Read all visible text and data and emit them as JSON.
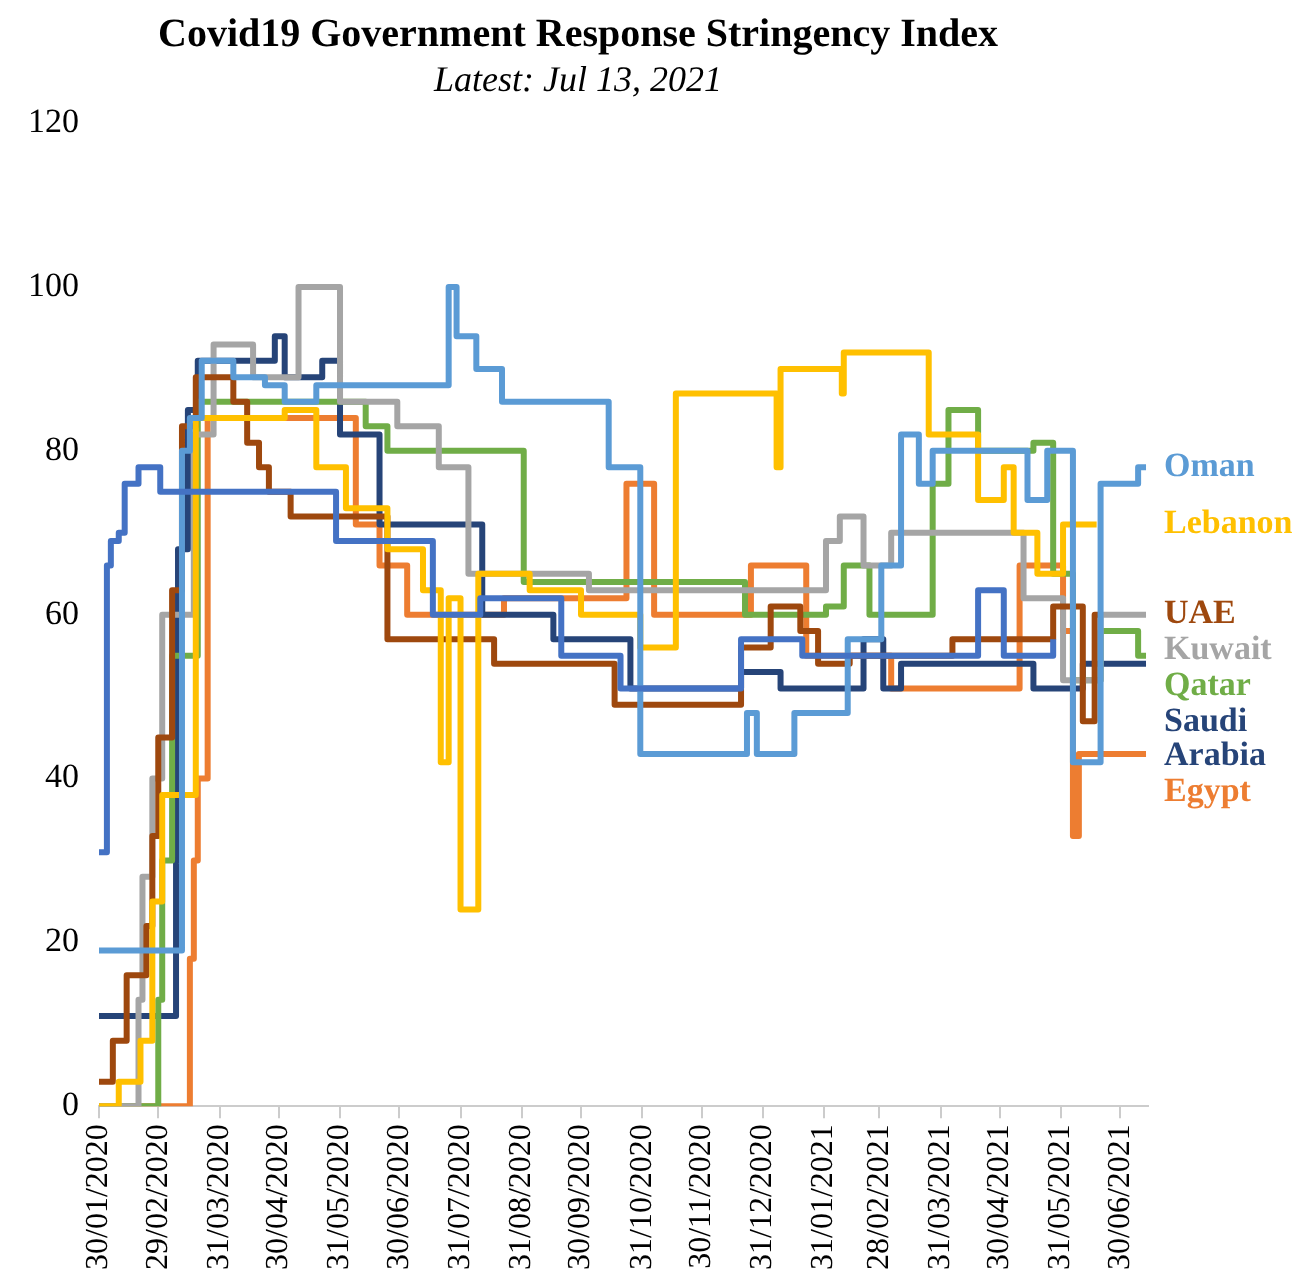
{
  "chart_data": {
    "type": "step",
    "title": "Covid19 Government Response Stringency Index",
    "subtitle": "Latest: Jul 13, 2021",
    "xlim": [
      "2020-01-30",
      "2021-07-14"
    ],
    "xticks": [
      {
        "value": "2020-01-30",
        "label": "30/01/2020"
      },
      {
        "value": "2020-02-29",
        "label": "29/02/2020"
      },
      {
        "value": "2020-03-31",
        "label": "31/03/2020"
      },
      {
        "value": "2020-04-30",
        "label": "30/04/2020"
      },
      {
        "value": "2020-05-31",
        "label": "31/05/2020"
      },
      {
        "value": "2020-06-30",
        "label": "30/06/2020"
      },
      {
        "value": "2020-07-31",
        "label": "31/07/2020"
      },
      {
        "value": "2020-08-31",
        "label": "31/08/2020"
      },
      {
        "value": "2020-09-30",
        "label": "30/09/2020"
      },
      {
        "value": "2020-10-31",
        "label": "31/10/2020"
      },
      {
        "value": "2020-11-30",
        "label": "30/11/2020"
      },
      {
        "value": "2020-12-31",
        "label": "31/12/2020"
      },
      {
        "value": "2021-01-31",
        "label": "31/01/2021"
      },
      {
        "value": "2021-02-28",
        "label": "28/02/2021"
      },
      {
        "value": "2021-03-31",
        "label": "31/03/2021"
      },
      {
        "value": "2021-04-30",
        "label": "30/04/2021"
      },
      {
        "value": "2021-05-31",
        "label": "31/05/2021"
      },
      {
        "value": "2021-06-30",
        "label": "30/06/2021"
      }
    ],
    "ylim": [
      0,
      120
    ],
    "yticks": [
      0,
      20,
      40,
      60,
      80,
      100,
      120
    ],
    "series": [
      {
        "color": "#4472c4",
        "x": [
          "2020-01-30",
          "2020-02-03",
          "2020-02-05",
          "2020-02-09",
          "2020-02-12",
          "2020-02-19",
          "2020-03-01",
          "2020-05-29",
          "2020-07-17",
          "2020-08-10",
          "2020-09-20",
          "2020-10-20",
          "2020-11-30",
          "2020-12-20",
          "2021-01-20",
          "2021-04-19",
          "2021-05-02",
          "2021-05-27"
        ],
        "values": [
          31,
          66,
          69,
          70,
          76,
          78,
          75,
          69,
          60,
          62,
          55,
          51,
          51,
          57,
          55,
          63,
          55,
          57
        ]
      },
      {
        "name": "Oman",
        "color": "#5b9bd5",
        "x": [
          "2020-01-30",
          "2020-03-12",
          "2020-03-16",
          "2020-03-22",
          "2020-04-07",
          "2020-04-23",
          "2020-05-03",
          "2020-05-19",
          "2020-07-25",
          "2020-07-29",
          "2020-08-08",
          "2020-08-21",
          "2020-10-14",
          "2020-10-30",
          "2020-12-23",
          "2020-12-28",
          "2021-01-16",
          "2021-02-12",
          "2021-03-01",
          "2021-03-11",
          "2021-03-20",
          "2021-03-27",
          "2021-05-14",
          "2021-05-24",
          "2021-06-06",
          "2021-06-20",
          "2021-07-09",
          "2021-07-13"
        ],
        "values": [
          19,
          80,
          84,
          91,
          89,
          88,
          86,
          88,
          100,
          94,
          90,
          86,
          78,
          43,
          48,
          43,
          48,
          57,
          66,
          82,
          76,
          80,
          74,
          80,
          42,
          76,
          78,
          78
        ]
      },
      {
        "name": "Lebanon",
        "color": "#ffc000",
        "x": [
          "2020-01-30",
          "2020-02-09",
          "2020-02-20",
          "2020-02-26",
          "2020-03-02",
          "2020-03-19",
          "2020-05-03",
          "2020-05-19",
          "2020-06-03",
          "2020-06-24",
          "2020-07-12",
          "2020-07-21",
          "2020-07-25",
          "2020-07-31",
          "2020-08-09",
          "2020-09-04",
          "2020-09-30",
          "2020-10-30",
          "2020-11-17",
          "2021-01-07",
          "2021-01-09",
          "2021-02-09",
          "2021-02-10",
          "2021-03-25",
          "2021-04-19",
          "2021-05-02",
          "2021-05-07",
          "2021-05-19",
          "2021-06-01",
          "2021-06-18"
        ],
        "values": [
          0,
          3,
          8,
          25,
          38,
          84,
          85,
          78,
          73,
          68,
          63,
          42,
          62,
          24,
          65,
          63,
          60,
          56,
          87,
          78,
          90,
          87,
          92,
          82,
          74,
          78,
          70,
          65,
          71,
          71
        ]
      },
      {
        "name": "UAE",
        "color": "#9e480e",
        "x": [
          "2020-01-30",
          "2020-02-06",
          "2020-02-13",
          "2020-02-23",
          "2020-02-26",
          "2020-02-29",
          "2020-03-07",
          "2020-03-12",
          "2020-03-19",
          "2020-04-07",
          "2020-04-14",
          "2020-04-20",
          "2020-04-25",
          "2020-05-06",
          "2020-06-24",
          "2020-08-17",
          "2020-10-17",
          "2020-12-20",
          "2021-01-04",
          "2021-01-19",
          "2021-01-28",
          "2021-02-13",
          "2021-04-06",
          "2021-05-27",
          "2021-06-11",
          "2021-06-17",
          "2021-06-20"
        ],
        "values": [
          3,
          8,
          16,
          22,
          33,
          45,
          63,
          83,
          89,
          86,
          81,
          78,
          75,
          72,
          57,
          54,
          49,
          56,
          61,
          58,
          54,
          55,
          57,
          61,
          47,
          60,
          60
        ]
      },
      {
        "name": "Kuwait",
        "color": "#a5a5a5",
        "x": [
          "2020-01-30",
          "2020-02-19",
          "2020-02-21",
          "2020-02-26",
          "2020-03-02",
          "2020-03-18",
          "2020-03-28",
          "2020-04-17",
          "2020-05-10",
          "2020-05-31",
          "2020-06-29",
          "2020-07-20",
          "2020-08-04",
          "2020-10-04",
          "2021-02-01",
          "2021-02-08",
          "2021-02-20",
          "2021-03-06",
          "2021-05-12",
          "2021-06-01",
          "2021-06-20",
          "2021-07-13"
        ],
        "values": [
          0,
          13,
          28,
          40,
          60,
          82,
          93,
          89,
          100,
          86,
          83,
          78,
          65,
          63,
          69,
          72,
          66,
          70,
          62,
          52,
          60,
          60
        ]
      },
      {
        "name": "Qatar",
        "color": "#70ad47",
        "x": [
          "2020-01-30",
          "2020-02-29",
          "2020-03-02",
          "2020-03-07",
          "2020-03-20",
          "2020-06-13",
          "2020-06-24",
          "2020-09-01",
          "2020-12-22",
          "2021-02-01",
          "2021-02-10",
          "2021-02-23",
          "2021-03-27",
          "2021-04-04",
          "2021-04-19",
          "2021-05-17",
          "2021-05-27",
          "2021-06-06",
          "2021-06-20",
          "2021-07-09",
          "2021-07-13"
        ],
        "values": [
          0,
          13,
          30,
          55,
          86,
          83,
          80,
          64,
          60,
          61,
          66,
          60,
          76,
          85,
          80,
          81,
          65,
          52,
          58,
          55,
          55
        ]
      },
      {
        "name": "Saudi Arabia",
        "color": "#264478",
        "x": [
          "2020-01-30",
          "2020-03-09",
          "2020-03-10",
          "2020-03-15",
          "2020-03-20",
          "2020-04-28",
          "2020-05-03",
          "2020-05-22",
          "2020-05-31",
          "2020-06-20",
          "2020-08-11",
          "2020-09-16",
          "2020-10-25",
          "2020-12-20",
          "2021-01-09",
          "2021-02-20",
          "2021-03-02",
          "2021-03-11",
          "2021-05-17",
          "2021-06-11",
          "2021-07-13"
        ],
        "values": [
          11,
          30,
          68,
          85,
          91,
          94,
          89,
          91,
          82,
          71,
          60,
          57,
          51,
          53,
          51,
          57,
          51,
          54,
          51,
          54,
          54
        ]
      },
      {
        "name": "Egypt",
        "color": "#ed7d31",
        "x": [
          "2020-01-30",
          "2020-03-16",
          "2020-03-18",
          "2020-03-20",
          "2020-03-25",
          "2020-06-08",
          "2020-06-20",
          "2020-07-04",
          "2020-08-22",
          "2020-10-23",
          "2020-11-06",
          "2020-12-25",
          "2021-01-22",
          "2021-03-06",
          "2021-05-10",
          "2021-06-01",
          "2021-06-06",
          "2021-06-09",
          "2021-07-13"
        ],
        "values": [
          0,
          18,
          30,
          40,
          84,
          71,
          66,
          60,
          62,
          76,
          60,
          66,
          55,
          51,
          66,
          58,
          33,
          43,
          43
        ]
      }
    ]
  }
}
